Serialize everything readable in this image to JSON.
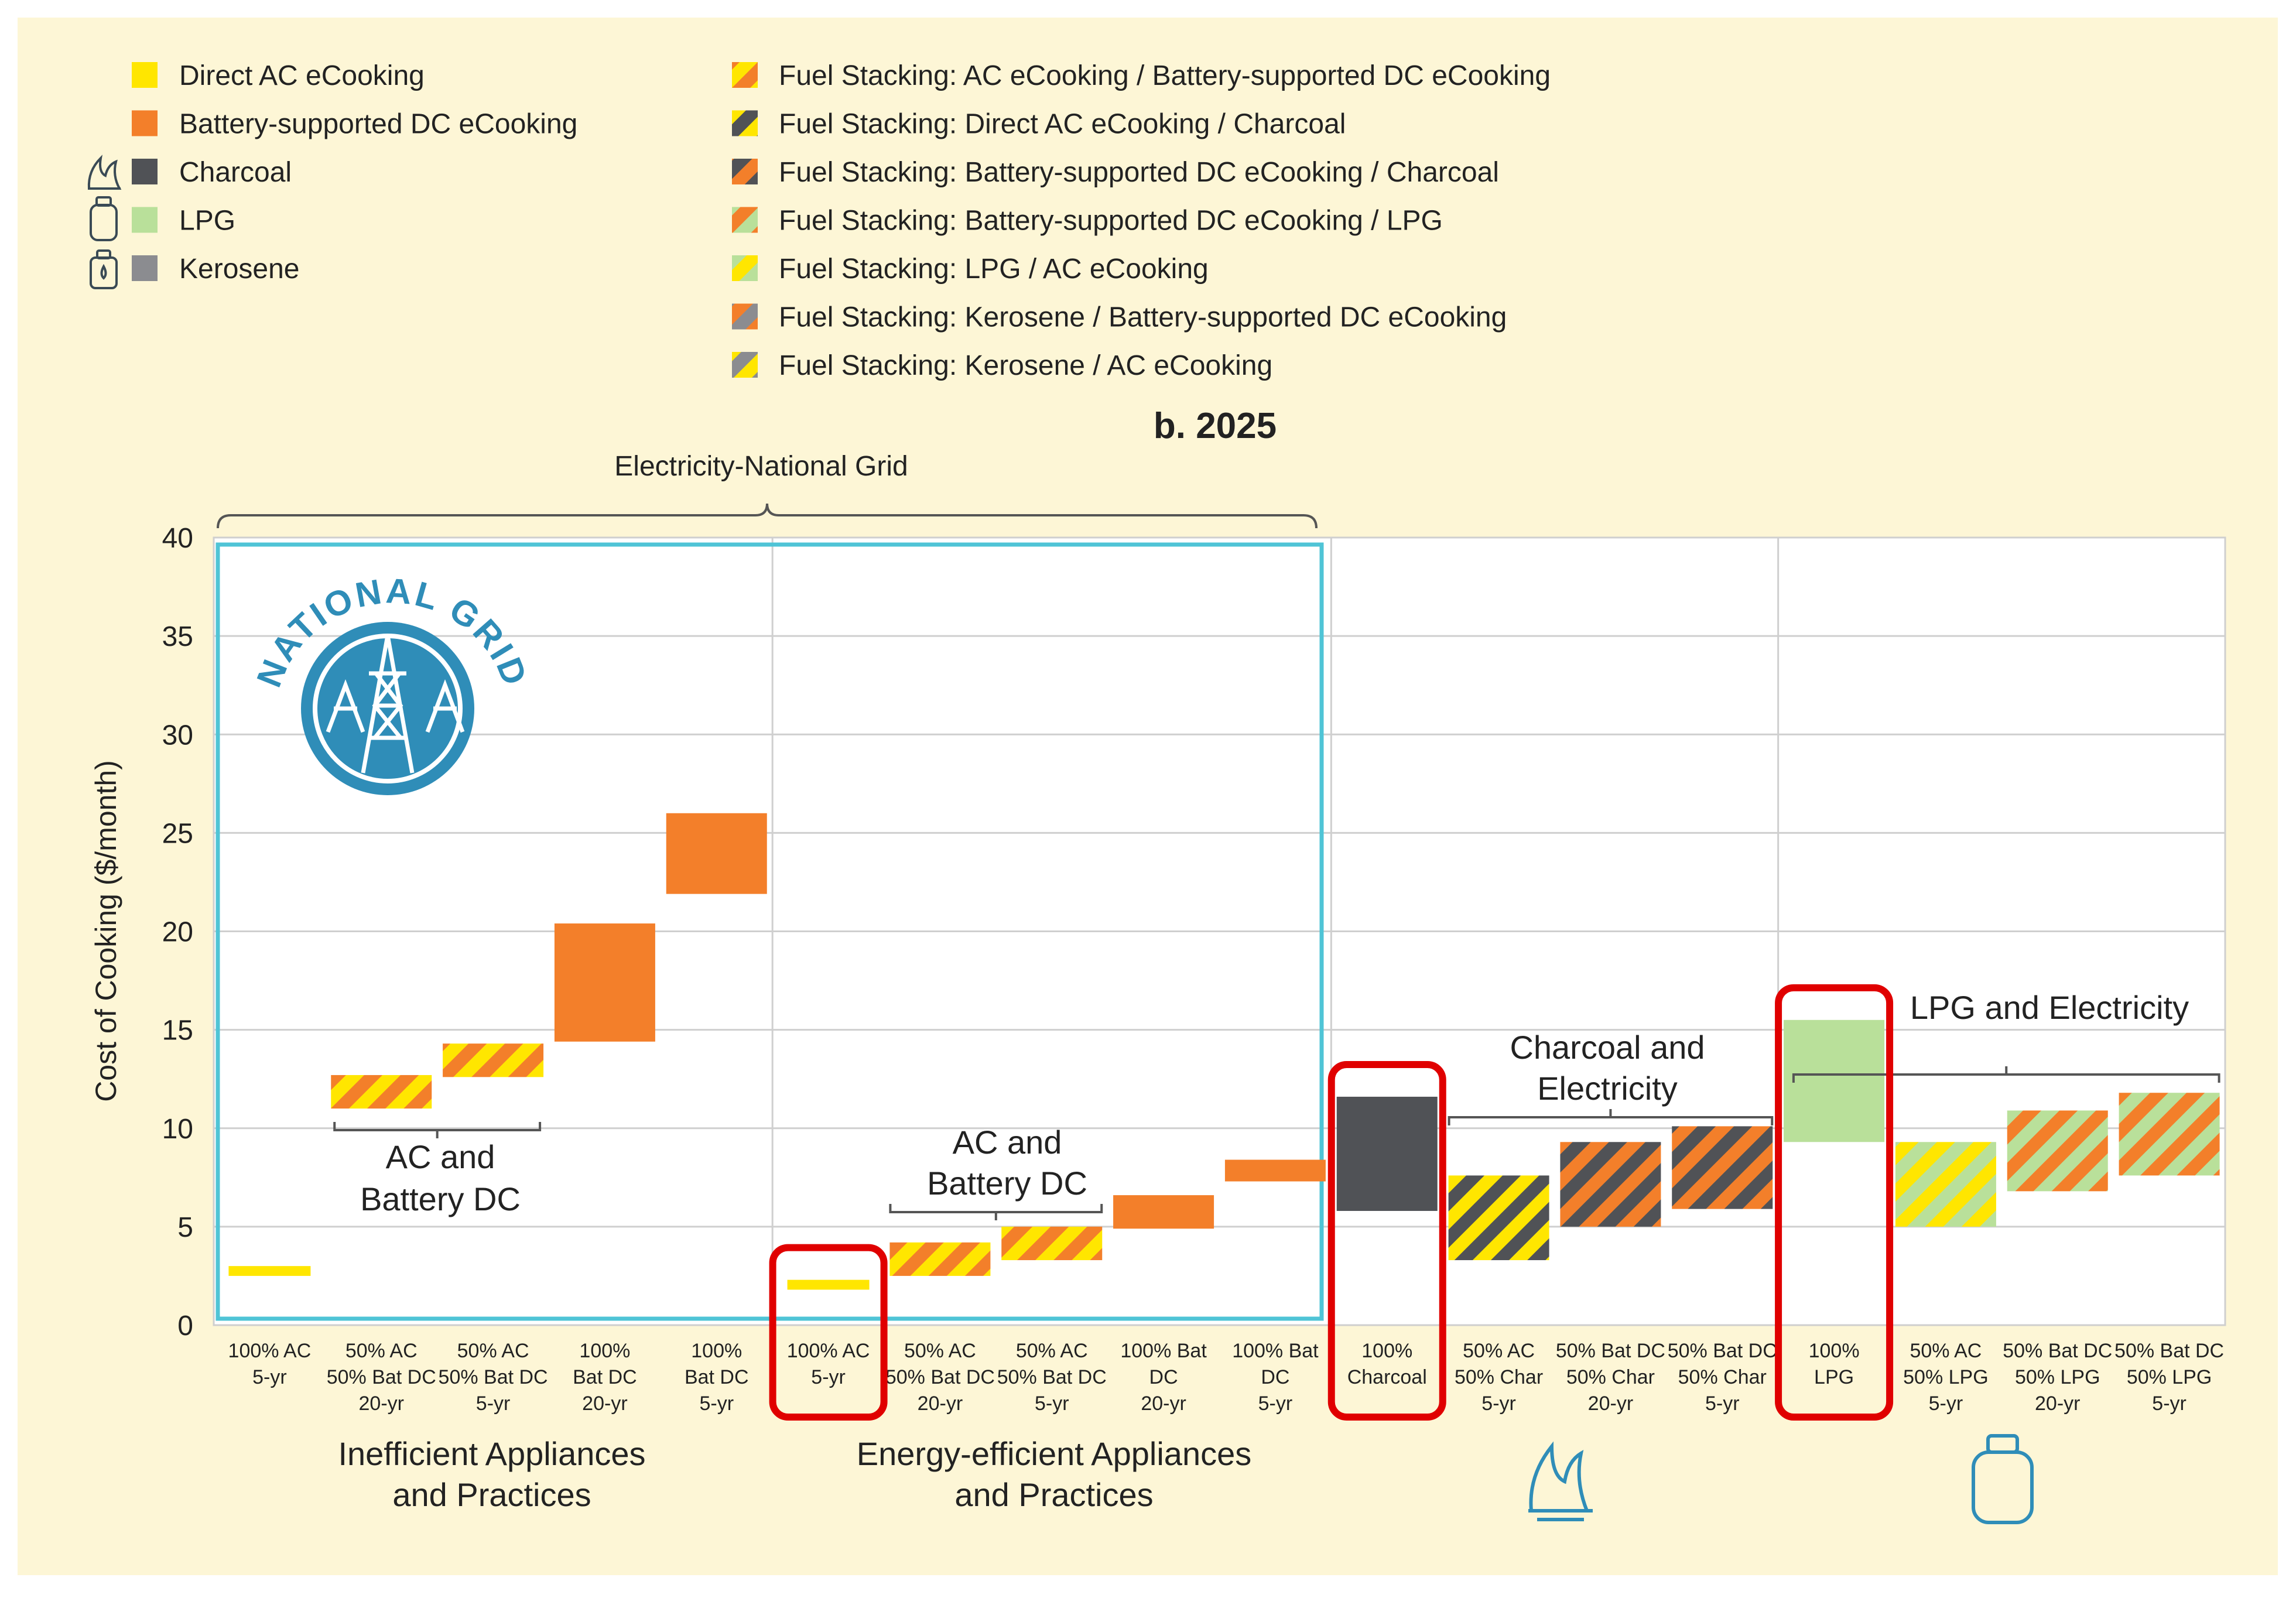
{
  "colors": {
    "background": "#fdf6d6",
    "plot_bg": "#ffffff",
    "grid": "#cfcfcf",
    "ac": "#ffe600",
    "bat": "#f37f2a",
    "charcoal": "#505256",
    "lpg": "#b9e09a",
    "kerosene": "#8b8c90",
    "national_box": "#4fc4d6",
    "highlight": "#e00000",
    "text": "#222222",
    "logo": "#2f8db8"
  },
  "legend_left": [
    {
      "label": "Direct AC eCooking",
      "fill": "ac",
      "icon": ""
    },
    {
      "label": "Battery-supported DC eCooking",
      "fill": "bat",
      "icon": ""
    },
    {
      "label": "Charcoal",
      "fill": "charcoal",
      "icon": "charcoal-fire-icon"
    },
    {
      "label": "LPG",
      "fill": "lpg",
      "icon": "lpg-cylinder-icon"
    },
    {
      "label": "Kerosene",
      "fill": "kerosene",
      "icon": "kerosene-can-icon"
    }
  ],
  "legend_right": [
    {
      "label": "Fuel Stacking: AC eCooking / Battery-supported DC eCooking",
      "c1": "ac",
      "c2": "bat"
    },
    {
      "label": "Fuel Stacking: Direct AC eCooking / Charcoal",
      "c1": "ac",
      "c2": "charcoal"
    },
    {
      "label": "Fuel Stacking: Battery-supported DC eCooking / Charcoal",
      "c1": "bat",
      "c2": "charcoal"
    },
    {
      "label": "Fuel Stacking: Battery-supported DC eCooking / LPG",
      "c1": "bat",
      "c2": "lpg"
    },
    {
      "label": "Fuel Stacking: LPG / AC eCooking",
      "c1": "lpg",
      "c2": "ac"
    },
    {
      "label": "Fuel Stacking: Kerosene / Battery-supported DC eCooking",
      "c1": "kerosene",
      "c2": "bat"
    },
    {
      "label": "Fuel Stacking: Kerosene / AC eCooking",
      "c1": "kerosene",
      "c2": "ac"
    }
  ],
  "logo_text": "NATIONAL GRID",
  "chart_data": {
    "type": "bar",
    "title": "b. 2025",
    "ylabel": "Cost of Cooking ($/month)",
    "ylim": [
      0,
      40
    ],
    "yticks": [
      0,
      5,
      10,
      15,
      20,
      25,
      30,
      35,
      40
    ],
    "grid": true,
    "categories": [
      {
        "label": [
          "100% AC",
          "5-yr"
        ],
        "low": 2.5,
        "high": 3.0,
        "style": "ac"
      },
      {
        "label": [
          "50% AC",
          "50% Bat DC",
          "20-yr"
        ],
        "low": 11.0,
        "high": 12.7,
        "style": "ac-bat"
      },
      {
        "label": [
          "50% AC",
          "50% Bat DC",
          "5-yr"
        ],
        "low": 12.6,
        "high": 14.3,
        "style": "ac-bat"
      },
      {
        "label": [
          "100%",
          "Bat DC",
          "20-yr"
        ],
        "low": 14.4,
        "high": 20.4,
        "style": "bat"
      },
      {
        "label": [
          "100%",
          "Bat DC",
          "5-yr"
        ],
        "low": 21.9,
        "high": 26.0,
        "style": "bat"
      },
      {
        "label": [
          "100% AC",
          "5-yr"
        ],
        "low": 1.8,
        "high": 2.3,
        "style": "ac",
        "highlight": true
      },
      {
        "label": [
          "50% AC",
          "50% Bat DC",
          "20-yr"
        ],
        "low": 2.5,
        "high": 4.2,
        "style": "ac-bat"
      },
      {
        "label": [
          "50% AC",
          "50% Bat DC",
          "5-yr"
        ],
        "low": 3.3,
        "high": 5.0,
        "style": "ac-bat"
      },
      {
        "label": [
          "100% Bat",
          "DC",
          "20-yr"
        ],
        "low": 4.9,
        "high": 6.6,
        "style": "bat"
      },
      {
        "label": [
          "100% Bat",
          "DC",
          "5-yr"
        ],
        "low": 7.3,
        "high": 8.4,
        "style": "bat"
      },
      {
        "label": [
          "100%",
          "Charcoal"
        ],
        "low": 5.8,
        "high": 11.6,
        "style": "charcoal",
        "highlight": true
      },
      {
        "label": [
          "50% AC",
          "50% Char",
          "5-yr"
        ],
        "low": 3.3,
        "high": 7.6,
        "style": "ac-charcoal"
      },
      {
        "label": [
          "50% Bat DC",
          "50% Char",
          "20-yr"
        ],
        "low": 5.0,
        "high": 9.3,
        "style": "bat-charcoal"
      },
      {
        "label": [
          "50% Bat DC",
          "50% Char",
          "5-yr"
        ],
        "low": 5.9,
        "high": 10.1,
        "style": "bat-charcoal"
      },
      {
        "label": [
          "100%",
          "LPG"
        ],
        "low": 9.3,
        "high": 15.5,
        "style": "lpg",
        "highlight": true
      },
      {
        "label": [
          "50% AC",
          "50% LPG",
          "5-yr"
        ],
        "low": 5.0,
        "high": 9.3,
        "style": "ac-lpg"
      },
      {
        "label": [
          "50% Bat DC",
          "50% LPG",
          "20-yr"
        ],
        "low": 6.8,
        "high": 10.9,
        "style": "bat-lpg"
      },
      {
        "label": [
          "50% Bat DC",
          "50% LPG",
          "5-yr"
        ],
        "low": 7.6,
        "high": 11.8,
        "style": "bat-lpg"
      }
    ],
    "section_labels": {
      "national_grid": "Electricity-National Grid",
      "inefficient": [
        "Inefficient Appliances",
        "and Practices"
      ],
      "efficient": [
        "Energy-efficient Appliances",
        "and Practices"
      ],
      "ac_bat_1": [
        "AC and",
        "Battery DC"
      ],
      "ac_bat_2": [
        "AC and",
        "Battery DC"
      ],
      "charcoal_elec": [
        "Charcoal and",
        "Electricity"
      ],
      "lpg_elec": "LPG and Electricity"
    }
  }
}
